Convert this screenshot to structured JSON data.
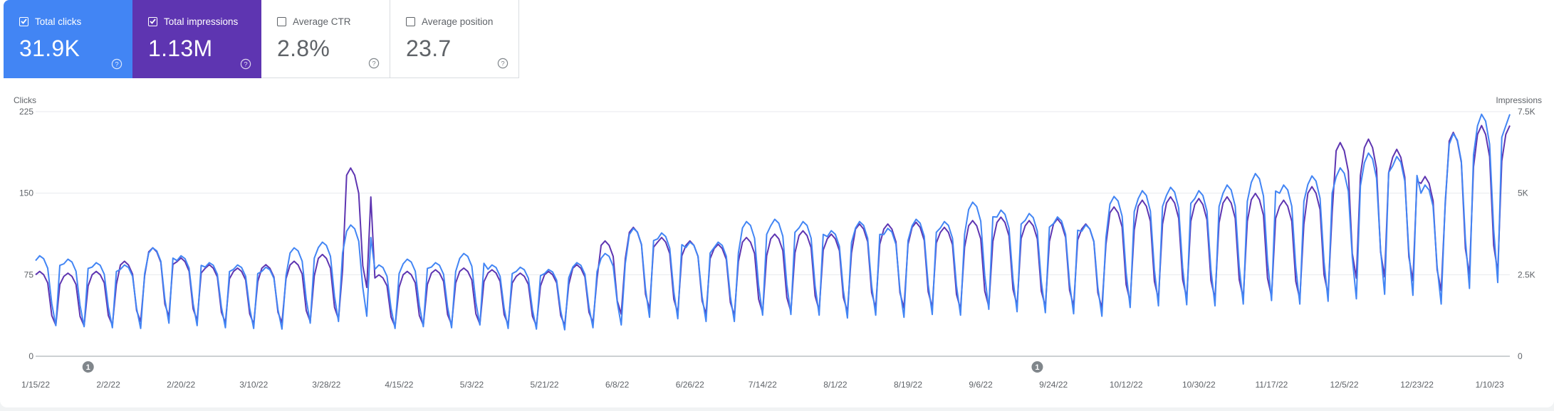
{
  "cards": [
    {
      "label": "Total clicks",
      "value": "31.9K",
      "checked": true,
      "icon": "help-icon"
    },
    {
      "label": "Total impressions",
      "value": "1.13M",
      "checked": true,
      "icon": "help-icon"
    },
    {
      "label": "Average CTR",
      "value": "2.8%",
      "checked": false,
      "icon": "help-icon"
    },
    {
      "label": "Average position",
      "value": "23.7",
      "checked": false,
      "icon": "help-icon"
    }
  ],
  "colors": {
    "clicks": "#4285f4",
    "impressions": "#5e35b1",
    "grid": "#e8eaed"
  },
  "annotations": [
    {
      "text": "1",
      "date": "2022-01-28"
    },
    {
      "text": "1",
      "date": "2022-09-20"
    }
  ],
  "chart_data": {
    "type": "line",
    "x_start": "2022-01-15",
    "x_end": "2023-01-15",
    "left_axis": {
      "label": "Clicks",
      "ylim": [
        0,
        225
      ],
      "ticks": [
        "0",
        "75",
        "150",
        "225"
      ]
    },
    "right_axis": {
      "label": "Impressions",
      "ylim": [
        0,
        7500
      ],
      "ticks": [
        "0",
        "2.5K",
        "5K",
        "7.5K"
      ]
    },
    "x_ticks": [
      "1/15/22",
      "2/2/22",
      "2/20/22",
      "3/10/22",
      "3/28/22",
      "4/15/22",
      "5/3/22",
      "5/21/22",
      "6/8/22",
      "6/26/22",
      "7/14/22",
      "8/1/22",
      "8/19/22",
      "9/6/22",
      "9/24/22",
      "10/12/22",
      "10/30/22",
      "11/17/22",
      "12/5/22",
      "12/23/22",
      "1/10/23"
    ],
    "grid": true,
    "series": [
      {
        "name": "Clicks",
        "axis": "left",
        "weekly_pattern": [
          1.0,
          1.05,
          1.02,
          0.92,
          0.55,
          0.32,
          0.95
        ],
        "weekly_peaks": [
          {
            "week_start": "2022-01-15",
            "peak": 88
          },
          {
            "week_start": "2022-01-22",
            "peak": 85
          },
          {
            "week_start": "2022-01-29",
            "peak": 82
          },
          {
            "week_start": "2022-02-05",
            "peak": 80
          },
          {
            "week_start": "2022-02-12",
            "peak": 95
          },
          {
            "week_start": "2022-02-19",
            "peak": 88
          },
          {
            "week_start": "2022-02-26",
            "peak": 82
          },
          {
            "week_start": "2022-03-05",
            "peak": 80
          },
          {
            "week_start": "2022-03-12",
            "peak": 78
          },
          {
            "week_start": "2022-03-19",
            "peak": 95
          },
          {
            "week_start": "2022-03-26",
            "peak": 100
          },
          {
            "week_start": "2022-04-02",
            "peak": 115
          },
          {
            "week_start": "2022-04-09",
            "peak": 80
          },
          {
            "week_start": "2022-04-16",
            "peak": 85
          },
          {
            "week_start": "2022-04-23",
            "peak": 82
          },
          {
            "week_start": "2022-04-30",
            "peak": 90
          },
          {
            "week_start": "2022-05-07",
            "peak": 80
          },
          {
            "week_start": "2022-05-14",
            "peak": 78
          },
          {
            "week_start": "2022-05-21",
            "peak": 76
          },
          {
            "week_start": "2022-05-28",
            "peak": 82
          },
          {
            "week_start": "2022-06-04",
            "peak": 90
          },
          {
            "week_start": "2022-06-11",
            "peak": 112
          },
          {
            "week_start": "2022-06-18",
            "peak": 108
          },
          {
            "week_start": "2022-06-25",
            "peak": 100
          },
          {
            "week_start": "2022-07-02",
            "peak": 100
          },
          {
            "week_start": "2022-07-09",
            "peak": 118
          },
          {
            "week_start": "2022-07-16",
            "peak": 120
          },
          {
            "week_start": "2022-07-23",
            "peak": 118
          },
          {
            "week_start": "2022-07-30",
            "peak": 110
          },
          {
            "week_start": "2022-08-06",
            "peak": 118
          },
          {
            "week_start": "2022-08-13",
            "peak": 112
          },
          {
            "week_start": "2022-08-20",
            "peak": 120
          },
          {
            "week_start": "2022-08-27",
            "peak": 118
          },
          {
            "week_start": "2022-09-03",
            "peak": 135
          },
          {
            "week_start": "2022-09-10",
            "peak": 128
          },
          {
            "week_start": "2022-09-17",
            "peak": 125
          },
          {
            "week_start": "2022-09-24",
            "peak": 122
          },
          {
            "week_start": "2022-10-01",
            "peak": 115
          },
          {
            "week_start": "2022-10-08",
            "peak": 140
          },
          {
            "week_start": "2022-10-15",
            "peak": 145
          },
          {
            "week_start": "2022-10-22",
            "peak": 148
          },
          {
            "week_start": "2022-10-29",
            "peak": 145
          },
          {
            "week_start": "2022-11-05",
            "peak": 150
          },
          {
            "week_start": "2022-11-12",
            "peak": 160
          },
          {
            "week_start": "2022-11-19",
            "peak": 150
          },
          {
            "week_start": "2022-11-26",
            "peak": 158
          },
          {
            "week_start": "2022-12-03",
            "peak": 165
          },
          {
            "week_start": "2022-12-10",
            "peak": 178
          },
          {
            "week_start": "2022-12-17",
            "peak": 175
          },
          {
            "week_start": "2022-12-24",
            "peak": 150
          },
          {
            "week_start": "2022-12-31",
            "peak": 195
          },
          {
            "week_start": "2023-01-07",
            "peak": 212
          }
        ]
      },
      {
        "name": "Impressions",
        "axis": "right",
        "weekly_pattern": [
          1.0,
          1.04,
          1.0,
          0.9,
          0.5,
          0.38,
          0.88
        ],
        "weekly_peaks": [
          {
            "week_start": "2022-01-15",
            "peak": 2500
          },
          {
            "week_start": "2022-01-22",
            "peak": 2450
          },
          {
            "week_start": "2022-01-29",
            "peak": 2500
          },
          {
            "week_start": "2022-02-05",
            "peak": 2800
          },
          {
            "week_start": "2022-02-12",
            "peak": 3200
          },
          {
            "week_start": "2022-02-19",
            "peak": 2900
          },
          {
            "week_start": "2022-02-26",
            "peak": 2700
          },
          {
            "week_start": "2022-03-05",
            "peak": 2600
          },
          {
            "week_start": "2022-03-12",
            "peak": 2700
          },
          {
            "week_start": "2022-03-19",
            "peak": 2800
          },
          {
            "week_start": "2022-03-26",
            "peak": 3000
          },
          {
            "week_start": "2022-04-02",
            "peak": 5550
          },
          {
            "week_start": "2022-04-09",
            "peak": 2400
          },
          {
            "week_start": "2022-04-16",
            "peak": 2500
          },
          {
            "week_start": "2022-04-23",
            "peak": 2550
          },
          {
            "week_start": "2022-04-30",
            "peak": 2600
          },
          {
            "week_start": "2022-05-07",
            "peak": 2550
          },
          {
            "week_start": "2022-05-14",
            "peak": 2450
          },
          {
            "week_start": "2022-05-21",
            "peak": 2500
          },
          {
            "week_start": "2022-05-28",
            "peak": 2700
          },
          {
            "week_start": "2022-06-04",
            "peak": 3400
          },
          {
            "week_start": "2022-06-11",
            "peak": 3800
          },
          {
            "week_start": "2022-06-18",
            "peak": 3500
          },
          {
            "week_start": "2022-06-25",
            "peak": 3400
          },
          {
            "week_start": "2022-07-02",
            "peak": 3300
          },
          {
            "week_start": "2022-07-09",
            "peak": 3500
          },
          {
            "week_start": "2022-07-16",
            "peak": 3600
          },
          {
            "week_start": "2022-07-23",
            "peak": 3700
          },
          {
            "week_start": "2022-07-30",
            "peak": 3600
          },
          {
            "week_start": "2022-08-06",
            "peak": 3900
          },
          {
            "week_start": "2022-08-13",
            "peak": 3900
          },
          {
            "week_start": "2022-08-20",
            "peak": 3950
          },
          {
            "week_start": "2022-08-27",
            "peak": 3800
          },
          {
            "week_start": "2022-09-03",
            "peak": 4000
          },
          {
            "week_start": "2022-09-10",
            "peak": 4100
          },
          {
            "week_start": "2022-09-17",
            "peak": 4000
          },
          {
            "week_start": "2022-09-24",
            "peak": 4050
          },
          {
            "week_start": "2022-10-01",
            "peak": 3900
          },
          {
            "week_start": "2022-10-08",
            "peak": 4400
          },
          {
            "week_start": "2022-10-15",
            "peak": 4600
          },
          {
            "week_start": "2022-10-22",
            "peak": 4700
          },
          {
            "week_start": "2022-10-29",
            "peak": 4650
          },
          {
            "week_start": "2022-11-05",
            "peak": 4700
          },
          {
            "week_start": "2022-11-12",
            "peak": 4800
          },
          {
            "week_start": "2022-11-19",
            "peak": 4600
          },
          {
            "week_start": "2022-11-26",
            "peak": 5000
          },
          {
            "week_start": "2022-12-03",
            "peak": 6300
          },
          {
            "week_start": "2022-12-10",
            "peak": 6400
          },
          {
            "week_start": "2022-12-17",
            "peak": 6100
          },
          {
            "week_start": "2022-12-24",
            "peak": 5300
          },
          {
            "week_start": "2022-12-31",
            "peak": 6600
          },
          {
            "week_start": "2023-01-07",
            "peak": 6800
          }
        ]
      }
    ]
  }
}
